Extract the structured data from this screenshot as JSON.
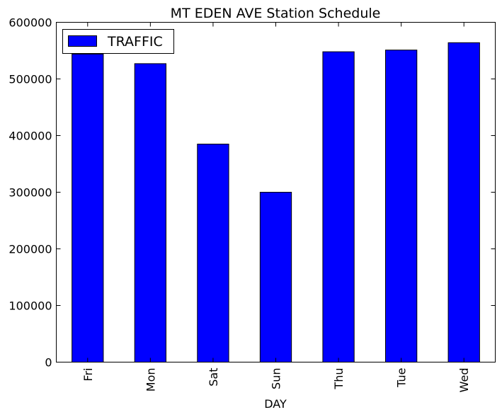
{
  "chart_data": {
    "type": "bar",
    "title": "MT EDEN AVE Station Schedule",
    "xlabel": "DAY",
    "ylabel": "",
    "categories": [
      "Fri",
      "Mon",
      "Sat",
      "Sun",
      "Thu",
      "Tue",
      "Wed"
    ],
    "series": [
      {
        "name": "TRAFFIC",
        "values": [
          544000,
          527000,
          385000,
          300000,
          548000,
          551000,
          564000
        ],
        "color": "#0000ff"
      }
    ],
    "ylim": [
      0,
      600000
    ],
    "yticks": [
      0,
      100000,
      200000,
      300000,
      400000,
      500000,
      600000
    ],
    "ytick_labels": [
      "0",
      "100000",
      "200000",
      "300000",
      "400000",
      "500000",
      "600000"
    ],
    "grid": false,
    "legend_position": "top-left"
  }
}
